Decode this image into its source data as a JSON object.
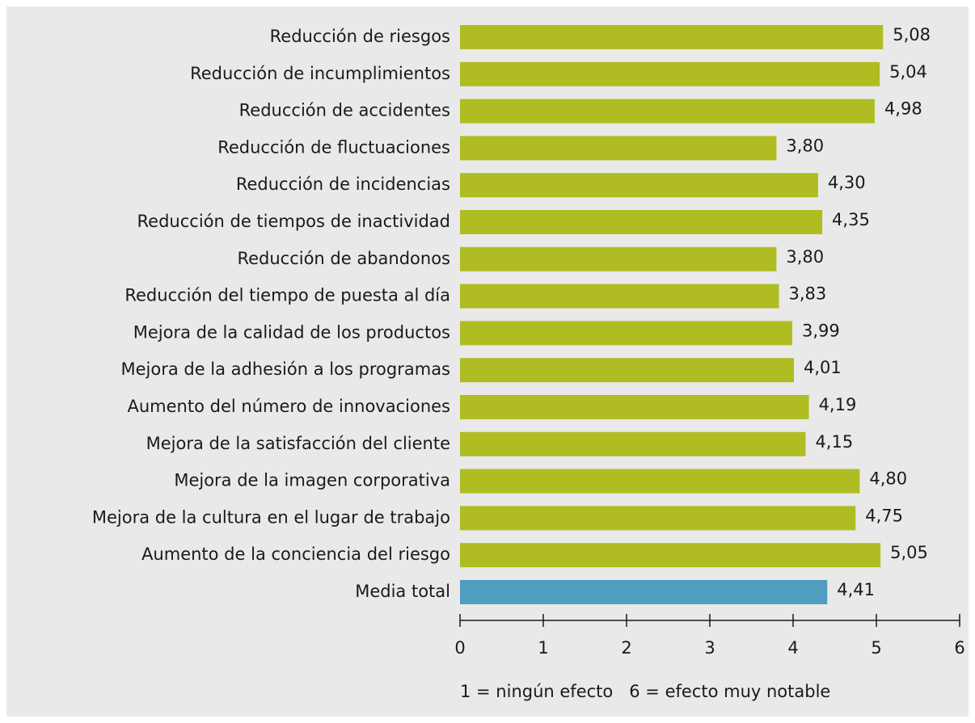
{
  "chart_data": {
    "type": "barh",
    "categories": [
      "Reducción de riesgos",
      "Reducción de incumplimientos",
      "Reducción de accidentes",
      "Reducción de fluctuaciones",
      "Reducción de incidencias",
      "Reducción de tiempos de inactividad",
      "Reducción de abandonos",
      "Reducción del tiempo de puesta al día",
      "Mejora de la calidad de los productos",
      "Mejora de la adhesión a los programas",
      "Aumento del número de innovaciones",
      "Mejora de la satisfacción del cliente",
      "Mejora de la imagen corporativa",
      "Mejora de la cultura en el lugar de trabajo",
      "Aumento de la conciencia del riesgo",
      "Media total"
    ],
    "values": [
      5.08,
      5.04,
      4.98,
      3.8,
      4.3,
      4.35,
      3.8,
      3.83,
      3.99,
      4.01,
      4.19,
      4.15,
      4.8,
      4.75,
      5.05,
      4.41
    ],
    "value_labels": [
      "5,08",
      "5,04",
      "4,98",
      "3,80",
      "4,30",
      "4,35",
      "3,80",
      "3,83",
      "3,99",
      "4,01",
      "4,19",
      "4,15",
      "4,80",
      "4,75",
      "5,05",
      "4,41"
    ],
    "colors": [
      "#afbd22",
      "#afbd22",
      "#afbd22",
      "#afbd22",
      "#afbd22",
      "#afbd22",
      "#afbd22",
      "#afbd22",
      "#afbd22",
      "#afbd22",
      "#afbd22",
      "#afbd22",
      "#afbd22",
      "#afbd22",
      "#afbd22",
      "#4f9dbf"
    ],
    "xlim": [
      0,
      6
    ],
    "xticks": [
      0,
      1,
      2,
      3,
      4,
      5,
      6
    ],
    "note": "1 = ningún efecto   6 = efecto muy notable"
  }
}
